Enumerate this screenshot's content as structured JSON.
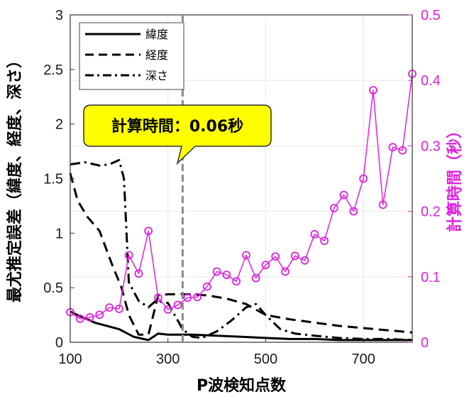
{
  "chart_data": {
    "type": "line",
    "xlabel": "P波検知点数",
    "ylabel_left": "最尤推定誤差（緯度、経度、深さ）",
    "ylabel_right": "計算時間（秒）",
    "xlim": [
      100,
      800
    ],
    "ylim_left": [
      0,
      3
    ],
    "ylim_right": [
      0,
      0.5
    ],
    "xticks": [
      "100",
      "300",
      "500",
      "700"
    ],
    "yticks_left": [
      "0",
      "0.5",
      "1",
      "1.5",
      "2",
      "2.5",
      "3"
    ],
    "yticks_right": [
      "0",
      "0.1",
      "0.2",
      "0.3",
      "0.4",
      "0.5"
    ],
    "legend": [
      "緯度",
      "経度",
      "深さ"
    ],
    "annotation": "計算時間：0.06秒",
    "marker_x": 330,
    "series": [
      {
        "name": "緯度",
        "axis": "left",
        "style": "solid",
        "x": [
          100,
          150,
          200,
          230,
          250,
          260,
          280,
          300,
          350,
          400,
          450,
          500,
          550,
          600,
          650,
          700,
          750,
          800
        ],
        "y": [
          0.28,
          0.18,
          0.12,
          0.05,
          0.03,
          0.02,
          0.08,
          0.07,
          0.07,
          0.06,
          0.05,
          0.04,
          0.03,
          0.03,
          0.02,
          0.02,
          0.02,
          0.02
        ]
      },
      {
        "name": "経度",
        "axis": "left",
        "style": "dashed",
        "x": [
          100,
          115,
          135,
          160,
          185,
          205,
          220,
          240,
          260,
          280,
          300,
          340,
          380,
          420,
          460,
          500,
          550,
          600,
          650,
          700,
          750,
          800
        ],
        "y": [
          1.55,
          1.3,
          1.15,
          1.02,
          0.72,
          0.5,
          0.25,
          0.07,
          0.07,
          0.43,
          0.44,
          0.44,
          0.43,
          0.4,
          0.35,
          0.25,
          0.21,
          0.18,
          0.15,
          0.13,
          0.11,
          0.09
        ]
      },
      {
        "name": "深さ",
        "axis": "left",
        "style": "dashdot",
        "x": [
          100,
          130,
          160,
          180,
          200,
          210,
          220,
          240,
          260,
          275,
          300,
          330,
          350,
          370,
          400,
          430,
          460,
          480,
          500,
          530,
          560,
          600,
          650,
          700,
          750,
          800
        ],
        "y": [
          1.63,
          1.65,
          1.62,
          1.63,
          1.67,
          1.5,
          0.55,
          0.38,
          0.32,
          0.38,
          0.36,
          0.12,
          0.05,
          0.04,
          0.1,
          0.2,
          0.32,
          0.35,
          0.25,
          0.12,
          0.08,
          0.06,
          0.04,
          0.03,
          0.03,
          0.02
        ]
      },
      {
        "name": "計算時間",
        "axis": "right",
        "style": "marker",
        "color": "#e020e0",
        "x": [
          100,
          120,
          140,
          160,
          180,
          200,
          220,
          240,
          260,
          280,
          300,
          320,
          340,
          360,
          380,
          400,
          420,
          440,
          460,
          480,
          500,
          520,
          540,
          560,
          580,
          600,
          620,
          640,
          660,
          680,
          700,
          720,
          740,
          760,
          780,
          800
        ],
        "y": [
          0.046,
          0.036,
          0.038,
          0.042,
          0.053,
          0.051,
          0.133,
          0.105,
          0.17,
          0.068,
          0.05,
          0.057,
          0.068,
          0.069,
          0.085,
          0.108,
          0.103,
          0.093,
          0.133,
          0.098,
          0.118,
          0.131,
          0.108,
          0.132,
          0.125,
          0.165,
          0.155,
          0.205,
          0.225,
          0.2,
          0.25,
          0.385,
          0.21,
          0.298,
          0.293,
          0.41
        ]
      }
    ]
  }
}
